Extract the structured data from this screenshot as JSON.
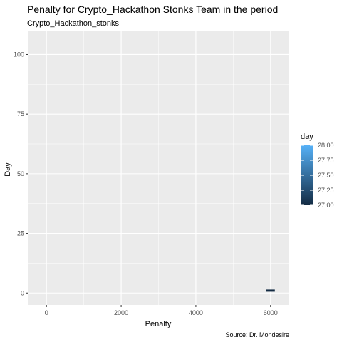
{
  "chart_data": {
    "type": "bar",
    "title": "Penalty for Crypto_Hackathon Stonks Team in the period",
    "subtitle": "Crypto_Hackathon_stonks",
    "xlabel": "Penalty",
    "ylabel": "Day",
    "caption": "Source: Dr. Mondesire",
    "xlim": [
      -500,
      6500
    ],
    "ylim": [
      -5,
      110
    ],
    "x_ticks": [
      0,
      2000,
      4000,
      6000
    ],
    "y_ticks": [
      0,
      25,
      50,
      75,
      100
    ],
    "grid": true,
    "bars": [
      {
        "x": 6000,
        "y": 1,
        "day": 27,
        "color": "#132B43"
      }
    ],
    "legend": {
      "title": "day",
      "position": "right",
      "labels": [
        "28.00",
        "27.75",
        "27.50",
        "27.25",
        "27.00"
      ],
      "range": [
        27,
        28
      ],
      "low_color": "#132B43",
      "high_color": "#56B1F7"
    },
    "background": "#EBEBEB",
    "grid_color": "#FFFFFF"
  }
}
